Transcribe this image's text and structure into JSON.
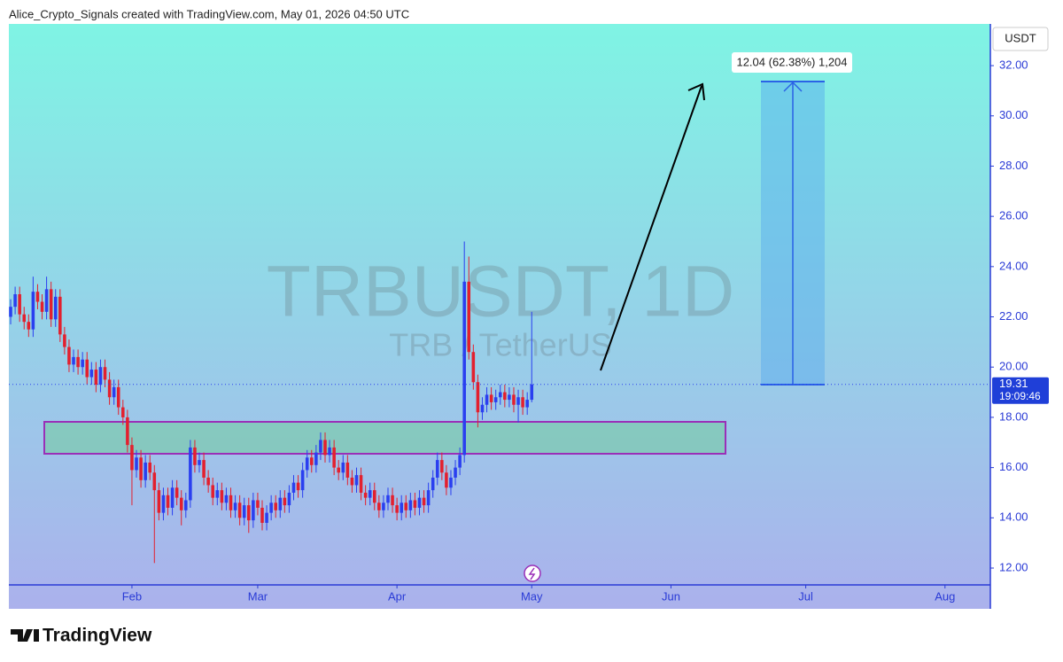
{
  "header": "Alice_Crypto_Signals created with TradingView.com, May 01, 2026 04:50 UTC",
  "brand": "TradingView",
  "chart_data": {
    "type": "candlestick",
    "title": "TRBUSDT, 1D",
    "subtitle": "TRB / TetherUS",
    "currency": "USDT",
    "up_color": "#2a3ff0",
    "down_color": "#e3202e",
    "last_price": 19.31,
    "countdown": "19:09:46",
    "measurement": "12.04 (62.38%) 1,204",
    "xlim": [
      -0.4,
      218.1
    ],
    "ylim": [
      11.33,
      33.66
    ],
    "xticks": [
      {
        "value": 27,
        "label": "Feb"
      },
      {
        "value": 55,
        "label": "Mar"
      },
      {
        "value": 86,
        "label": "Apr"
      },
      {
        "value": 116,
        "label": "May"
      },
      {
        "value": 147,
        "label": "Jun"
      },
      {
        "value": 177,
        "label": "Jul"
      },
      {
        "value": 208,
        "label": "Aug"
      }
    ],
    "yticks": [
      {
        "value": 12,
        "label": "12.00"
      },
      {
        "value": 14,
        "label": "14.00"
      },
      {
        "value": 16,
        "label": "16.00"
      },
      {
        "value": 18,
        "label": "18.00"
      },
      {
        "value": 20,
        "label": "20.00"
      },
      {
        "value": 22,
        "label": "22.00"
      },
      {
        "value": 24,
        "label": "24.00"
      },
      {
        "value": 26,
        "label": "26.00"
      },
      {
        "value": 28,
        "label": "28.00"
      },
      {
        "value": 30,
        "label": "30.00"
      },
      {
        "value": 32,
        "label": "32.00"
      }
    ],
    "series": [
      {
        "open": [
          22.0,
          22.4,
          22.9,
          22.1,
          21.8,
          21.5,
          23.0,
          22.6,
          22.2,
          23.1,
          21.9,
          22.8,
          21.3,
          20.8,
          20.1,
          20.4,
          20.0,
          20.3,
          19.6,
          19.9,
          19.3,
          20.0,
          19.5,
          18.8,
          19.2,
          18.4,
          18.0,
          16.9,
          15.9,
          16.4,
          15.5,
          16.2,
          15.8,
          15.1,
          14.2,
          14.9,
          14.4,
          15.2,
          14.8,
          14.3,
          14.7,
          16.8,
          16.1,
          16.3,
          15.6,
          15.3,
          14.8,
          15.1,
          14.6,
          14.9,
          14.3,
          14.6,
          14.0,
          14.5,
          13.9,
          14.7,
          14.4,
          13.8,
          14.2,
          14.6,
          14.3,
          14.8,
          14.5,
          15.0,
          15.4,
          15.1,
          15.9,
          16.4,
          16.1,
          16.6,
          17.1,
          16.5,
          16.8,
          16.0,
          15.8,
          16.2,
          15.6,
          15.3,
          15.7,
          15.0,
          14.8,
          15.1,
          14.6,
          14.3,
          14.6,
          14.9,
          14.5,
          14.2,
          14.6,
          14.3,
          14.7,
          14.4,
          14.8,
          14.5,
          15.1,
          15.6,
          16.3,
          15.8,
          15.2,
          15.6,
          16.0,
          16.5,
          23.4,
          20.6,
          19.4,
          18.2,
          18.5,
          18.9,
          18.6,
          18.8,
          19.0,
          18.7,
          18.9,
          18.5,
          18.8,
          18.4,
          18.7
        ],
        "high": [
          22.7,
          23.2,
          23.2,
          22.4,
          22.1,
          23.6,
          23.3,
          22.9,
          23.6,
          23.4,
          23.1,
          23.1,
          21.6,
          21.1,
          20.7,
          20.7,
          20.6,
          20.6,
          20.2,
          20.2,
          20.3,
          20.3,
          19.8,
          19.5,
          19.5,
          18.7,
          18.3,
          17.2,
          16.7,
          16.7,
          16.5,
          16.5,
          16.1,
          15.4,
          15.2,
          15.2,
          15.5,
          15.5,
          15.1,
          15.0,
          17.1,
          17.1,
          16.6,
          16.6,
          15.9,
          15.6,
          15.4,
          15.4,
          15.2,
          15.2,
          14.9,
          14.9,
          14.8,
          14.8,
          15.0,
          15.0,
          14.7,
          14.5,
          14.9,
          14.9,
          15.1,
          15.1,
          15.3,
          15.7,
          15.7,
          16.2,
          16.7,
          16.7,
          16.9,
          17.4,
          17.4,
          17.1,
          17.1,
          16.3,
          16.5,
          16.5,
          15.9,
          16.0,
          16.0,
          15.3,
          15.4,
          15.4,
          14.9,
          14.9,
          15.2,
          15.2,
          14.8,
          14.9,
          14.9,
          15.0,
          15.0,
          15.1,
          15.1,
          15.4,
          15.9,
          16.6,
          16.6,
          16.1,
          15.9,
          16.3,
          16.8,
          25.0,
          24.4,
          20.9,
          19.7,
          18.8,
          19.2,
          19.2,
          19.1,
          19.3,
          19.3,
          19.2,
          19.2,
          19.1,
          19.1,
          19.0,
          22.2
        ],
        "low": [
          21.7,
          22.1,
          21.8,
          21.5,
          21.2,
          21.2,
          22.3,
          21.9,
          21.9,
          21.6,
          21.6,
          21.0,
          20.5,
          19.8,
          19.8,
          19.7,
          19.7,
          19.3,
          19.3,
          19.0,
          19.0,
          19.2,
          18.5,
          18.5,
          18.1,
          17.7,
          16.6,
          14.5,
          15.6,
          15.2,
          15.2,
          15.5,
          12.2,
          13.9,
          13.9,
          14.1,
          14.1,
          14.5,
          13.7,
          14.0,
          14.4,
          15.8,
          15.8,
          15.3,
          15.0,
          14.5,
          14.5,
          14.3,
          14.3,
          14.0,
          14.0,
          13.7,
          13.7,
          13.4,
          13.6,
          14.1,
          13.5,
          13.5,
          13.9,
          14.0,
          14.0,
          14.2,
          14.2,
          14.7,
          14.8,
          14.8,
          15.6,
          15.8,
          15.8,
          16.3,
          16.2,
          16.2,
          15.7,
          15.5,
          15.5,
          15.3,
          15.0,
          15.0,
          14.7,
          14.5,
          14.5,
          14.3,
          14.0,
          14.0,
          14.3,
          14.2,
          13.9,
          13.9,
          14.0,
          14.0,
          14.1,
          14.1,
          14.2,
          14.2,
          14.8,
          15.3,
          15.5,
          14.9,
          14.9,
          15.3,
          15.7,
          16.2,
          20.3,
          19.1,
          17.6,
          17.9,
          18.2,
          18.3,
          18.3,
          18.5,
          18.4,
          18.4,
          18.2,
          17.8,
          18.1,
          18.1,
          18.6
        ],
        "close": [
          22.4,
          22.9,
          22.1,
          21.8,
          21.5,
          23.0,
          22.6,
          22.2,
          23.1,
          21.9,
          22.8,
          21.3,
          20.8,
          20.1,
          20.4,
          20.0,
          20.3,
          19.6,
          19.9,
          19.3,
          20.0,
          19.5,
          18.8,
          19.2,
          18.4,
          18.0,
          16.9,
          15.9,
          16.4,
          15.5,
          16.2,
          15.8,
          15.1,
          14.2,
          14.9,
          14.4,
          15.2,
          14.8,
          14.3,
          14.7,
          16.8,
          16.1,
          16.3,
          15.6,
          15.3,
          14.8,
          15.1,
          14.6,
          14.9,
          14.3,
          14.6,
          14.0,
          14.5,
          13.9,
          14.7,
          14.4,
          13.8,
          14.2,
          14.6,
          14.3,
          14.8,
          14.5,
          15.0,
          15.4,
          15.1,
          15.9,
          16.4,
          16.1,
          16.6,
          17.1,
          16.5,
          16.8,
          16.0,
          15.8,
          16.2,
          15.6,
          15.3,
          15.7,
          15.0,
          14.8,
          15.1,
          14.6,
          14.3,
          14.6,
          14.9,
          14.5,
          14.2,
          14.6,
          14.3,
          14.7,
          14.4,
          14.8,
          14.5,
          15.1,
          15.6,
          16.3,
          15.8,
          15.2,
          15.6,
          16.0,
          16.5,
          23.4,
          20.6,
          19.4,
          18.2,
          18.5,
          18.9,
          18.6,
          18.8,
          19.0,
          18.7,
          18.9,
          18.5,
          18.8,
          18.4,
          18.7,
          19.31
        ]
      }
    ]
  }
}
